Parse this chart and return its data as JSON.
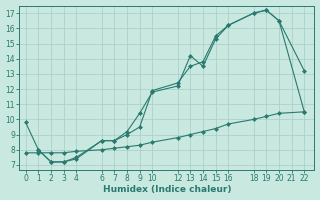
{
  "line1": {
    "x": [
      0,
      1,
      2,
      3,
      4,
      6,
      7,
      8,
      9,
      10,
      12,
      13,
      14,
      15,
      16,
      18,
      19,
      20,
      22
    ],
    "y": [
      9.8,
      8.0,
      7.2,
      7.2,
      7.4,
      8.6,
      8.6,
      9.2,
      10.4,
      11.8,
      12.2,
      14.2,
      13.5,
      15.3,
      16.2,
      17.0,
      17.2,
      16.5,
      10.5
    ]
  },
  "line2": {
    "x": [
      1,
      2,
      3,
      4,
      6,
      7,
      8,
      9,
      10,
      12,
      13,
      14,
      15,
      16,
      18,
      19,
      20,
      22
    ],
    "y": [
      8.0,
      7.2,
      7.2,
      7.5,
      8.6,
      8.6,
      9.0,
      9.5,
      11.9,
      12.4,
      13.5,
      13.8,
      15.5,
      16.2,
      17.0,
      17.2,
      16.5,
      13.2
    ]
  },
  "line3": {
    "x": [
      0,
      1,
      2,
      3,
      4,
      6,
      7,
      8,
      9,
      10,
      12,
      13,
      14,
      15,
      16,
      18,
      19,
      20,
      22
    ],
    "y": [
      7.8,
      7.8,
      7.8,
      7.8,
      7.9,
      8.0,
      8.1,
      8.2,
      8.3,
      8.5,
      8.8,
      9.0,
      9.2,
      9.4,
      9.7,
      10.0,
      10.2,
      10.4,
      10.5
    ]
  },
  "color": "#2a7a6f",
  "bg_color": "#c8e8e0",
  "grid_color": "#a8ccc4",
  "xlabel": "Humidex (Indice chaleur)",
  "xlim": [
    -0.5,
    22.8
  ],
  "ylim": [
    6.7,
    17.5
  ],
  "xticks": [
    0,
    1,
    2,
    3,
    4,
    6,
    7,
    8,
    9,
    10,
    12,
    13,
    14,
    15,
    16,
    18,
    19,
    20,
    21,
    22
  ],
  "yticks": [
    7,
    8,
    9,
    10,
    11,
    12,
    13,
    14,
    15,
    16,
    17
  ],
  "marker": "D",
  "markersize": 2.0,
  "linewidth": 0.8
}
